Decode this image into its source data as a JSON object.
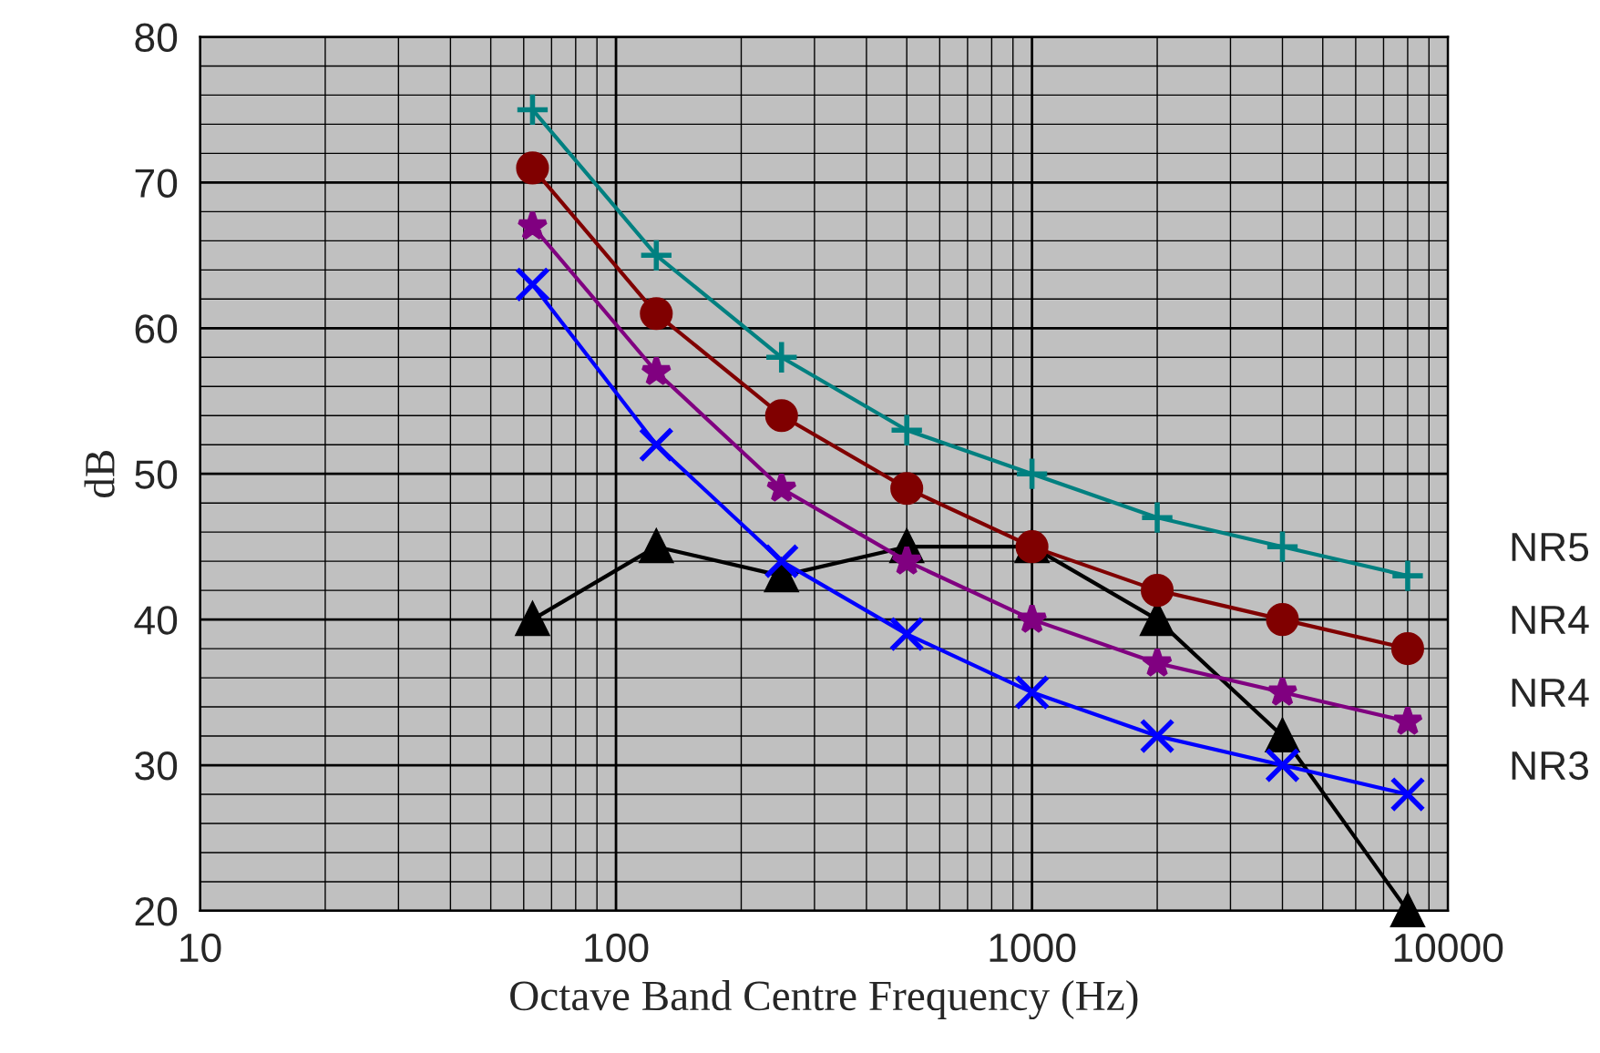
{
  "chart_data": {
    "type": "line",
    "xlabel": "Octave Band Centre Frequency (Hz)",
    "ylabel": "dB",
    "x": [
      63,
      125,
      250,
      500,
      1000,
      2000,
      4000,
      8000
    ],
    "series": [
      {
        "name": "NR5",
        "color": "#008080",
        "marker": "cross",
        "values": [
          75,
          65,
          58,
          53,
          50,
          47,
          45,
          43
        ]
      },
      {
        "name": "NR4",
        "color": "#800000",
        "marker": "circle",
        "values": [
          71,
          61,
          54,
          49,
          45,
          42,
          40,
          38
        ]
      },
      {
        "name": "NR4",
        "color": "#800080",
        "marker": "star",
        "values": [
          67,
          57,
          49,
          44,
          40,
          37,
          35,
          33
        ]
      },
      {
        "name": "NR3",
        "color": "#0000ff",
        "marker": "cross",
        "values": [
          63,
          52,
          44,
          39,
          35,
          32,
          30,
          28
        ]
      },
      {
        "color": "#000000",
        "marker": "triangle",
        "values": [
          40,
          45,
          43,
          45,
          45,
          40,
          32,
          20
        ]
      }
    ],
    "log": "x",
    "xlim": [
      10,
      10000
    ],
    "xticks": [
      10,
      100,
      1000,
      10000
    ],
    "ylim": [
      20,
      80
    ],
    "yticks": [
      20,
      30,
      40,
      50,
      60,
      70,
      80
    ],
    "grid": true,
    "legend": false,
    "line_style": "solid"
  }
}
